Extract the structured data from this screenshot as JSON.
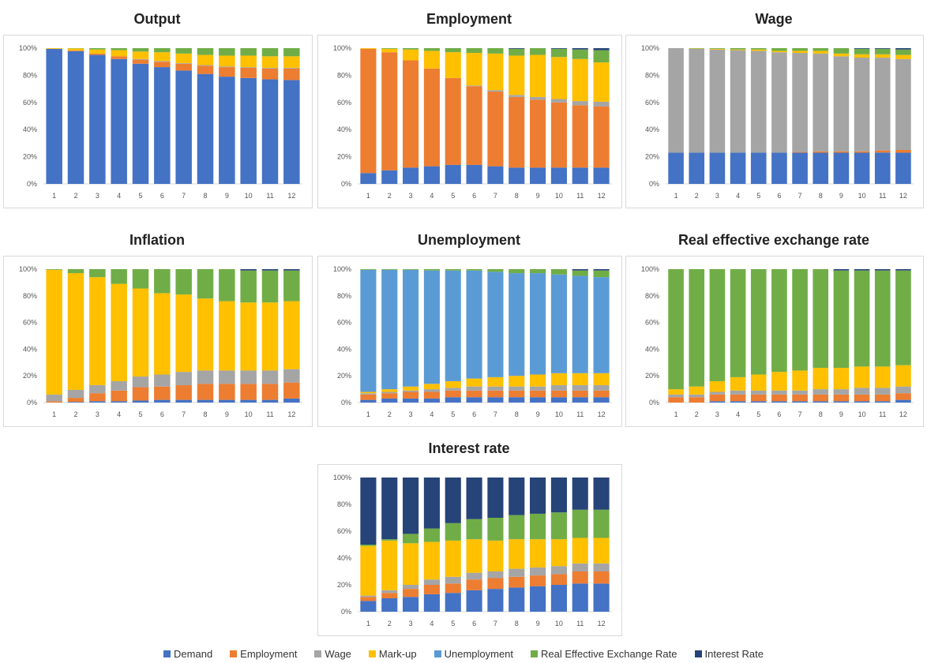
{
  "series_colors": {
    "Demand": "#4472c4",
    "Employment": "#ed7d31",
    "Wage": "#a5a5a5",
    "Mark-up": "#ffc000",
    "Unemployment": "#5b9bd5",
    "Real Effective Exchange Rate": "#70ad47",
    "Interest Rate": "#264478"
  },
  "legend": [
    "Demand",
    "Employment",
    "Wage",
    "Mark-up",
    "Unemployment",
    "Real Effective Exchange Rate",
    "Interest Rate"
  ],
  "chart_data": [
    {
      "type": "bar",
      "stacked": true,
      "title": "Output",
      "categories": [
        "1",
        "2",
        "3",
        "4",
        "5",
        "6",
        "7",
        "8",
        "9",
        "10",
        "11",
        "12"
      ],
      "yticks": [
        "0%",
        "20%",
        "40%",
        "60%",
        "80%",
        "100%"
      ],
      "ylim": [
        0,
        100
      ],
      "series": [
        {
          "name": "Demand",
          "values": [
            99.5,
            97.8,
            95,
            92,
            88.5,
            86,
            83.5,
            81,
            79,
            78,
            77,
            76.5
          ]
        },
        {
          "name": "Employment",
          "values": [
            0,
            0.5,
            1,
            2,
            3,
            4,
            5,
            6,
            7,
            7.5,
            8,
            8.5
          ]
        },
        {
          "name": "Wage",
          "values": [
            0,
            0,
            0,
            0,
            0.5,
            0.5,
            0.5,
            0.5,
            0.5,
            0.5,
            0.5,
            0.5
          ]
        },
        {
          "name": "Mark-up",
          "values": [
            0.5,
            1.5,
            3,
            4.5,
            5.5,
            6.5,
            7,
            7.5,
            8,
            8.5,
            8.5,
            8.5
          ]
        },
        {
          "name": "Unemployment",
          "values": [
            0,
            0,
            0,
            0,
            0,
            0,
            0,
            0,
            0,
            0,
            0,
            0
          ]
        },
        {
          "name": "Real Effective Exchange Rate",
          "values": [
            0,
            0.2,
            1,
            1.5,
            2.5,
            3,
            4,
            5,
            5.5,
            5.5,
            6,
            6
          ]
        },
        {
          "name": "Interest Rate",
          "values": [
            0,
            0,
            0,
            0,
            0,
            0,
            0,
            0,
            0,
            0,
            0,
            0
          ]
        }
      ]
    },
    {
      "type": "bar",
      "stacked": true,
      "title": "Employment",
      "categories": [
        "1",
        "2",
        "3",
        "4",
        "5",
        "6",
        "7",
        "8",
        "9",
        "10",
        "11",
        "12"
      ],
      "yticks": [
        "0%",
        "20%",
        "40%",
        "60%",
        "80%",
        "100%"
      ],
      "ylim": [
        0,
        100
      ],
      "series": [
        {
          "name": "Demand",
          "values": [
            8,
            10,
            12,
            13,
            14,
            14,
            13,
            12,
            12,
            12,
            12,
            12
          ]
        },
        {
          "name": "Employment",
          "values": [
            91.5,
            87,
            79,
            72,
            64,
            58,
            55,
            52,
            50,
            48,
            46,
            45
          ]
        },
        {
          "name": "Wage",
          "values": [
            0,
            0,
            0,
            0,
            0,
            0.5,
            1,
            1.5,
            2,
            2.5,
            3,
            3.5
          ]
        },
        {
          "name": "Mark-up",
          "values": [
            0.5,
            2.5,
            8,
            13,
            19,
            24,
            27,
            29,
            31,
            31,
            31,
            29
          ]
        },
        {
          "name": "Unemployment",
          "values": [
            0,
            0,
            0,
            0,
            0,
            0,
            0,
            0,
            0,
            0,
            0,
            0
          ]
        },
        {
          "name": "Real Effective Exchange Rate",
          "values": [
            0,
            0.5,
            1,
            2,
            3,
            3.5,
            4,
            5,
            5,
            6,
            7,
            9
          ]
        },
        {
          "name": "Interest Rate",
          "values": [
            0,
            0,
            0,
            0,
            0,
            0,
            0,
            0.5,
            0,
            0.5,
            1,
            1.5
          ]
        }
      ]
    },
    {
      "type": "bar",
      "stacked": true,
      "title": "Wage",
      "categories": [
        "1",
        "2",
        "3",
        "4",
        "5",
        "6",
        "7",
        "8",
        "9",
        "10",
        "11",
        "12"
      ],
      "yticks": [
        "0%",
        "20%",
        "40%",
        "60%",
        "80%",
        "100%"
      ],
      "ylim": [
        0,
        100
      ],
      "series": [
        {
          "name": "Demand",
          "values": [
            23,
            23,
            23,
            23,
            23,
            23,
            23,
            23,
            23,
            23,
            23,
            23
          ]
        },
        {
          "name": "Employment",
          "values": [
            0,
            0,
            0,
            0,
            0,
            0,
            0.5,
            1,
            1,
            1,
            1.5,
            2
          ]
        },
        {
          "name": "Wage",
          "values": [
            77,
            76.5,
            76,
            75.5,
            75,
            74,
            73,
            72,
            70,
            69,
            68,
            67
          ]
        },
        {
          "name": "Mark-up",
          "values": [
            0,
            0.2,
            0.5,
            0.5,
            1,
            1,
            1.5,
            2,
            2,
            2.5,
            2.5,
            3
          ]
        },
        {
          "name": "Unemployment",
          "values": [
            0,
            0,
            0,
            0,
            0,
            0,
            0,
            0,
            0,
            0,
            0,
            0
          ]
        },
        {
          "name": "Real Effective Exchange Rate",
          "values": [
            0,
            0.3,
            0.5,
            1,
            1,
            2,
            2,
            2,
            4,
            4,
            4,
            4
          ]
        },
        {
          "name": "Interest Rate",
          "values": [
            0,
            0,
            0,
            0,
            0,
            0,
            0,
            0,
            0,
            0.5,
            0.5,
            1
          ]
        }
      ]
    },
    {
      "type": "bar",
      "stacked": true,
      "title": "Inflation",
      "categories": [
        "1",
        "2",
        "3",
        "4",
        "5",
        "6",
        "7",
        "8",
        "9",
        "10",
        "11",
        "12"
      ],
      "yticks": [
        "0%",
        "20%",
        "40%",
        "60%",
        "80%",
        "100%"
      ],
      "ylim": [
        0,
        100
      ],
      "series": [
        {
          "name": "Demand",
          "values": [
            0,
            0.5,
            1,
            1,
            1.5,
            2,
            2,
            2,
            2,
            2,
            2,
            3
          ]
        },
        {
          "name": "Employment",
          "values": [
            1,
            3,
            6,
            8,
            10,
            10,
            11,
            12,
            12,
            12,
            12,
            12
          ]
        },
        {
          "name": "Wage",
          "values": [
            5,
            6,
            6,
            7,
            8,
            9,
            10,
            10,
            10,
            10,
            10,
            10
          ]
        },
        {
          "name": "Mark-up",
          "values": [
            93.5,
            87.5,
            81,
            73,
            66,
            61,
            58,
            54,
            52,
            51,
            51,
            51
          ]
        },
        {
          "name": "Unemployment",
          "values": [
            0,
            0,
            0,
            0,
            0,
            0,
            0,
            0,
            0,
            0,
            0,
            0
          ]
        },
        {
          "name": "Real Effective Exchange Rate",
          "values": [
            0.5,
            3,
            6,
            11,
            14.5,
            18,
            19,
            22,
            24,
            24,
            24,
            23
          ]
        },
        {
          "name": "Interest Rate",
          "values": [
            0,
            0,
            0,
            0,
            0,
            0,
            0,
            0,
            0,
            1,
            1,
            1
          ]
        }
      ]
    },
    {
      "type": "bar",
      "stacked": true,
      "title": "Unemployment",
      "categories": [
        "1",
        "2",
        "3",
        "4",
        "5",
        "6",
        "7",
        "8",
        "9",
        "10",
        "11",
        "12"
      ],
      "yticks": [
        "0%",
        "20%",
        "40%",
        "60%",
        "80%",
        "100%"
      ],
      "ylim": [
        0,
        100
      ],
      "series": [
        {
          "name": "Demand",
          "values": [
            2,
            3,
            3,
            3,
            4,
            4,
            4,
            4,
            4,
            4,
            4,
            4
          ]
        },
        {
          "name": "Employment",
          "values": [
            4,
            4,
            5,
            5,
            5,
            5,
            5,
            5,
            5,
            5,
            5,
            5
          ]
        },
        {
          "name": "Wage",
          "values": [
            1,
            1,
            1,
            2,
            2,
            3,
            3,
            3,
            3,
            4,
            4,
            4
          ]
        },
        {
          "name": "Mark-up",
          "values": [
            1,
            2,
            3,
            4,
            5,
            6,
            7,
            8,
            9,
            9,
            9,
            9
          ]
        },
        {
          "name": "Unemployment",
          "values": [
            91.5,
            89.5,
            87.5,
            85,
            83,
            81,
            79,
            77,
            76,
            74,
            73,
            72
          ]
        },
        {
          "name": "Real Effective Exchange Rate",
          "values": [
            0.5,
            0.5,
            0.5,
            1,
            1,
            1,
            2,
            3,
            3,
            4,
            4,
            5
          ]
        },
        {
          "name": "Interest Rate",
          "values": [
            0,
            0,
            0,
            0,
            0,
            0,
            0,
            0,
            0,
            0,
            1,
            1
          ]
        }
      ]
    },
    {
      "type": "bar",
      "stacked": true,
      "title": "Real effective exchange rate",
      "categories": [
        "1",
        "2",
        "3",
        "4",
        "5",
        "6",
        "7",
        "8",
        "9",
        "10",
        "11",
        "12"
      ],
      "yticks": [
        "0%",
        "20%",
        "40%",
        "60%",
        "80%",
        "100%"
      ],
      "ylim": [
        0,
        100
      ],
      "series": [
        {
          "name": "Demand",
          "values": [
            0,
            0,
            1,
            1,
            1,
            1,
            1,
            1,
            1,
            1,
            1,
            2
          ]
        },
        {
          "name": "Employment",
          "values": [
            4,
            4,
            5,
            5,
            5,
            5,
            5,
            5,
            5,
            5,
            5,
            5
          ]
        },
        {
          "name": "Wage",
          "values": [
            2,
            2,
            2,
            3,
            3,
            3,
            3,
            4,
            4,
            5,
            5,
            5
          ]
        },
        {
          "name": "Mark-up",
          "values": [
            4,
            6,
            8,
            10,
            12,
            14,
            15,
            16,
            16,
            16,
            16,
            16
          ]
        },
        {
          "name": "Unemployment",
          "values": [
            0,
            0,
            0,
            0,
            0,
            0,
            0,
            0,
            0,
            0,
            0,
            0
          ]
        },
        {
          "name": "Real Effective Exchange Rate",
          "values": [
            90,
            88,
            84,
            81,
            79,
            77,
            76,
            74,
            73,
            72,
            72,
            71
          ]
        },
        {
          "name": "Interest Rate",
          "values": [
            0,
            0,
            0,
            0,
            0,
            0,
            0,
            0,
            1,
            1,
            1,
            1
          ]
        }
      ]
    },
    {
      "type": "bar",
      "stacked": true,
      "title": "Interest rate",
      "categories": [
        "1",
        "2",
        "3",
        "4",
        "5",
        "6",
        "7",
        "8",
        "9",
        "10",
        "11",
        "12"
      ],
      "yticks": [
        "0%",
        "20%",
        "40%",
        "60%",
        "80%",
        "100%"
      ],
      "ylim": [
        0,
        100
      ],
      "series": [
        {
          "name": "Demand",
          "values": [
            8,
            10,
            11,
            13,
            14,
            16,
            17,
            18,
            19,
            20,
            21,
            21
          ]
        },
        {
          "name": "Employment",
          "values": [
            3,
            4,
            6,
            7,
            7,
            8,
            8,
            8,
            8,
            8,
            9,
            9
          ]
        },
        {
          "name": "Wage",
          "values": [
            1,
            2,
            3,
            4,
            5,
            5,
            5,
            6,
            6,
            6,
            6,
            6
          ]
        },
        {
          "name": "Mark-up",
          "values": [
            37,
            37,
            31,
            28,
            27,
            25,
            23,
            22,
            21,
            20,
            19,
            19
          ]
        },
        {
          "name": "Unemployment",
          "values": [
            0,
            0,
            0,
            0,
            0,
            0,
            0,
            0,
            0,
            0,
            0,
            0
          ]
        },
        {
          "name": "Real Effective Exchange Rate",
          "values": [
            1,
            1,
            7,
            10,
            13,
            15,
            17,
            18,
            19,
            20,
            21,
            21
          ]
        },
        {
          "name": "Interest Rate",
          "values": [
            50,
            46,
            42,
            38,
            34,
            31,
            30,
            28,
            27,
            26,
            24,
            24
          ]
        }
      ]
    }
  ]
}
